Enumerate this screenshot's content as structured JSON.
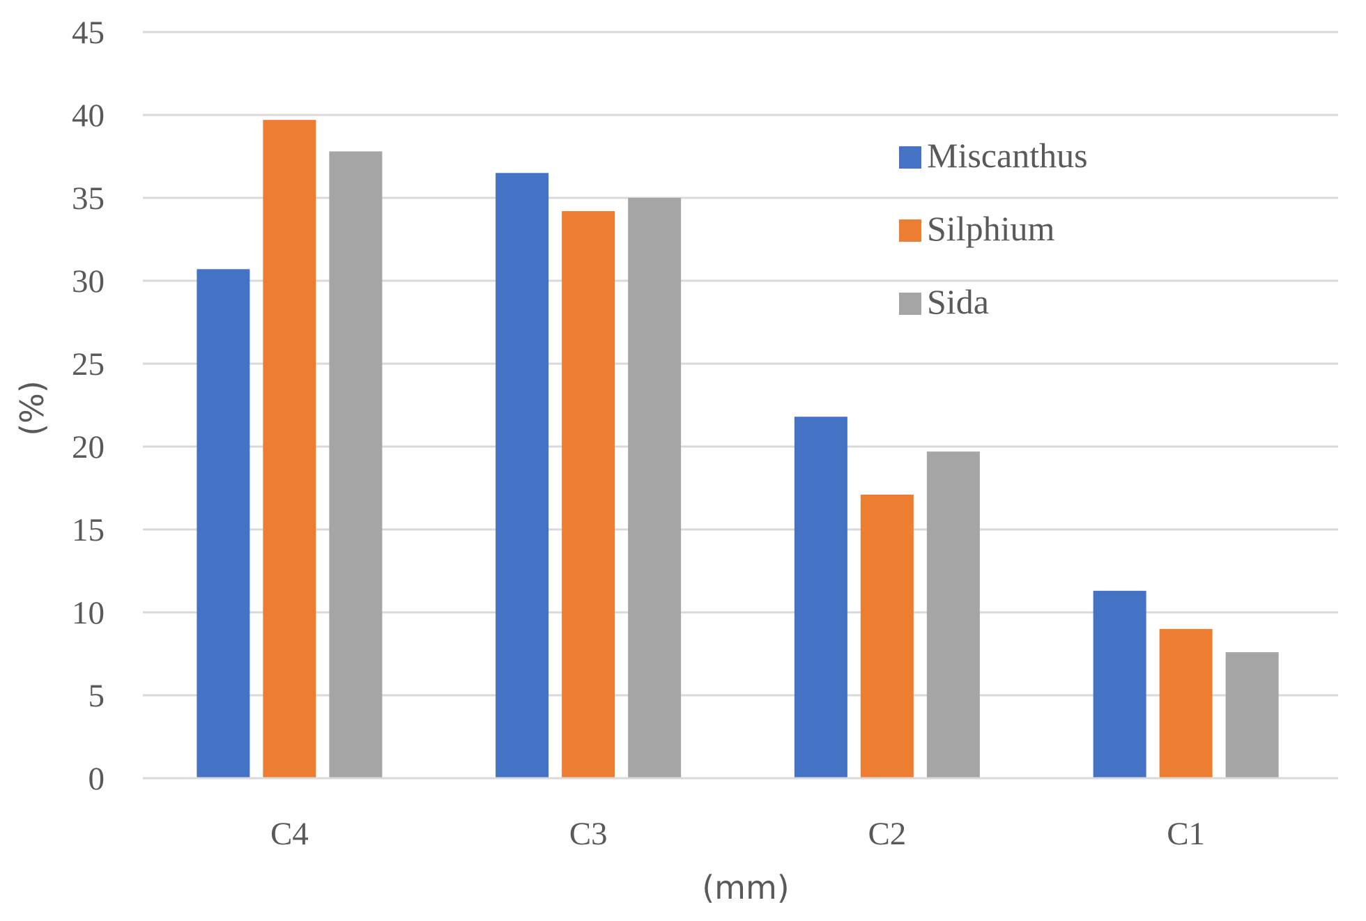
{
  "chart_data": {
    "type": "bar",
    "title": "",
    "xlabel": "(mm)",
    "ylabel": "(%)",
    "ylim": [
      0,
      45
    ],
    "yticks": [
      0,
      5,
      10,
      15,
      20,
      25,
      30,
      35,
      40,
      45
    ],
    "grid": true,
    "legend_position": "top-right",
    "categories": [
      "C4",
      "C3",
      "C2",
      "C1"
    ],
    "series": [
      {
        "name": "Miscanthus",
        "color": "#4472c4",
        "values": [
          30.7,
          36.5,
          21.8,
          11.3
        ]
      },
      {
        "name": "Silphium",
        "color": "#ed7d31",
        "values": [
          39.7,
          34.2,
          17.1,
          9.0
        ]
      },
      {
        "name": "Sida",
        "color": "#a5a5a5",
        "values": [
          37.8,
          35.0,
          19.7,
          7.6
        ]
      }
    ]
  }
}
